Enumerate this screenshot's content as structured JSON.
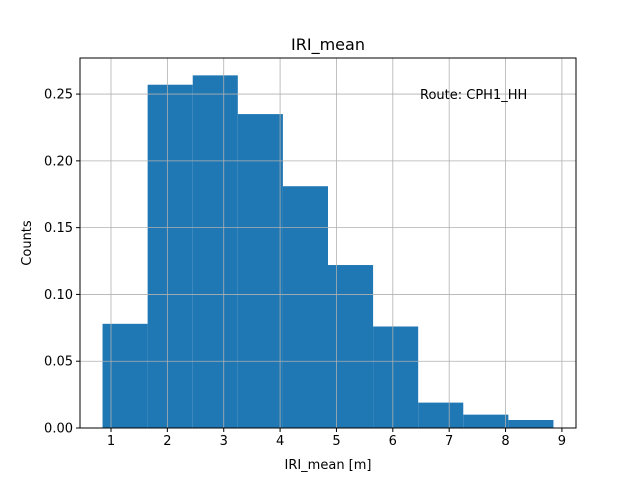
{
  "chart_data": {
    "type": "bar",
    "title": "IRI_mean",
    "xlabel": "IRI_mean [m]",
    "ylabel": "Counts",
    "annotation": "Route: CPH1_HH",
    "bin_edges": [
      0.85,
      1.65,
      2.45,
      3.25,
      4.05,
      4.85,
      5.65,
      6.45,
      7.25,
      8.05,
      8.85
    ],
    "values": [
      0.078,
      0.257,
      0.264,
      0.235,
      0.181,
      0.122,
      0.076,
      0.019,
      0.01,
      0.006
    ],
    "xlim": [
      0.45,
      9.25
    ],
    "ylim": [
      0,
      0.277
    ],
    "xticks": [
      1,
      2,
      3,
      4,
      5,
      6,
      7,
      8,
      9
    ],
    "yticks": [
      0.0,
      0.05,
      0.1,
      0.15,
      0.2,
      0.25
    ],
    "ytick_labels": [
      "0.00",
      "0.05",
      "0.10",
      "0.15",
      "0.20",
      "0.25"
    ],
    "grid": true,
    "bar_color": "#1f77b4",
    "grid_color": "#b0b0b0"
  }
}
